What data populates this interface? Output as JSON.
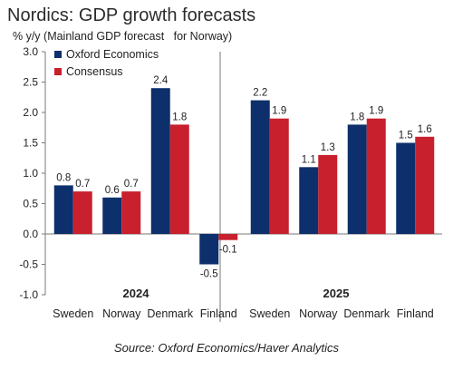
{
  "title": "Nordics: GDP growth forecasts",
  "subtitle": "% y/y (Mainland GDP forecast   for Norway)",
  "source": "Source: Oxford Economics/Haver Analytics",
  "chart_data": {
    "type": "bar",
    "ylim": [
      -1.0,
      3.0
    ],
    "yticks": [
      "-1.0",
      "-0.5",
      "0.0",
      "0.5",
      "1.0",
      "1.5",
      "2.0",
      "2.5",
      "3.0"
    ],
    "groups": [
      {
        "label": "2024",
        "categories": [
          "Sweden",
          "Norway",
          "Denmark",
          "Finland"
        ],
        "series": [
          {
            "name": "Oxford Economics",
            "color": "#0d2f6b",
            "values": [
              0.8,
              0.6,
              2.4,
              -0.5
            ],
            "labels": [
              "0.8",
              "0.6",
              "2.4",
              "-0.5"
            ]
          },
          {
            "name": "Consensus",
            "color": "#c8202d",
            "values": [
              0.7,
              0.7,
              1.8,
              -0.1
            ],
            "labels": [
              "0.7",
              "0.7",
              "1.8",
              "-0.1"
            ]
          }
        ]
      },
      {
        "label": "2025",
        "categories": [
          "Sweden",
          "Norway",
          "Denmark",
          "Finland"
        ],
        "series": [
          {
            "name": "Oxford Economics",
            "color": "#0d2f6b",
            "values": [
              2.2,
              1.1,
              1.8,
              1.5
            ],
            "labels": [
              "2.2",
              "1.1",
              "1.8",
              "1.5"
            ]
          },
          {
            "name": "Consensus",
            "color": "#c8202d",
            "values": [
              1.9,
              1.3,
              1.9,
              1.6
            ],
            "labels": [
              "1.9",
              "1.3",
              "1.9",
              "1.6"
            ]
          }
        ]
      }
    ],
    "legend": {
      "placement": "top-left",
      "items": [
        {
          "name": "Oxford Economics",
          "color": "#0d2f6b"
        },
        {
          "name": "Consensus",
          "color": "#c8202d"
        }
      ]
    },
    "grid": false
  }
}
